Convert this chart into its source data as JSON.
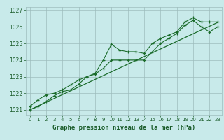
{
  "title": "Graphe pression niveau de la mer (hPa)",
  "bg_color": "#c8eaea",
  "grid_color": "#9dbdbd",
  "line_color": "#1a6b2a",
  "text_color": "#1a5c2a",
  "xlim": [
    -0.5,
    23.5
  ],
  "ylim": [
    1020.7,
    1027.2
  ],
  "xticks": [
    0,
    1,
    2,
    3,
    4,
    5,
    6,
    7,
    8,
    9,
    10,
    11,
    12,
    13,
    14,
    15,
    16,
    17,
    18,
    19,
    20,
    21,
    22,
    23
  ],
  "yticks": [
    1021,
    1022,
    1023,
    1024,
    1025,
    1026,
    1027
  ],
  "series1": [
    1021.2,
    1021.6,
    1021.9,
    1022.0,
    1022.2,
    1022.5,
    1022.8,
    1023.0,
    1023.2,
    1024.0,
    1024.95,
    1024.6,
    1024.5,
    1024.5,
    1024.4,
    1025.0,
    1025.3,
    1025.5,
    1025.7,
    1026.3,
    1026.55,
    1026.3,
    1026.3,
    1026.3
  ],
  "series2": [
    1021.0,
    1021.2,
    1021.5,
    1021.85,
    1022.1,
    1022.2,
    1022.55,
    1023.0,
    1023.15,
    1023.5,
    1024.0,
    1024.0,
    1024.0,
    1024.0,
    1024.0,
    1024.5,
    1025.0,
    1025.3,
    1025.6,
    1026.1,
    1026.4,
    1026.0,
    1025.7,
    1026.0
  ],
  "trend_x": [
    0,
    23
  ],
  "trend_y": [
    1021.0,
    1026.27
  ]
}
